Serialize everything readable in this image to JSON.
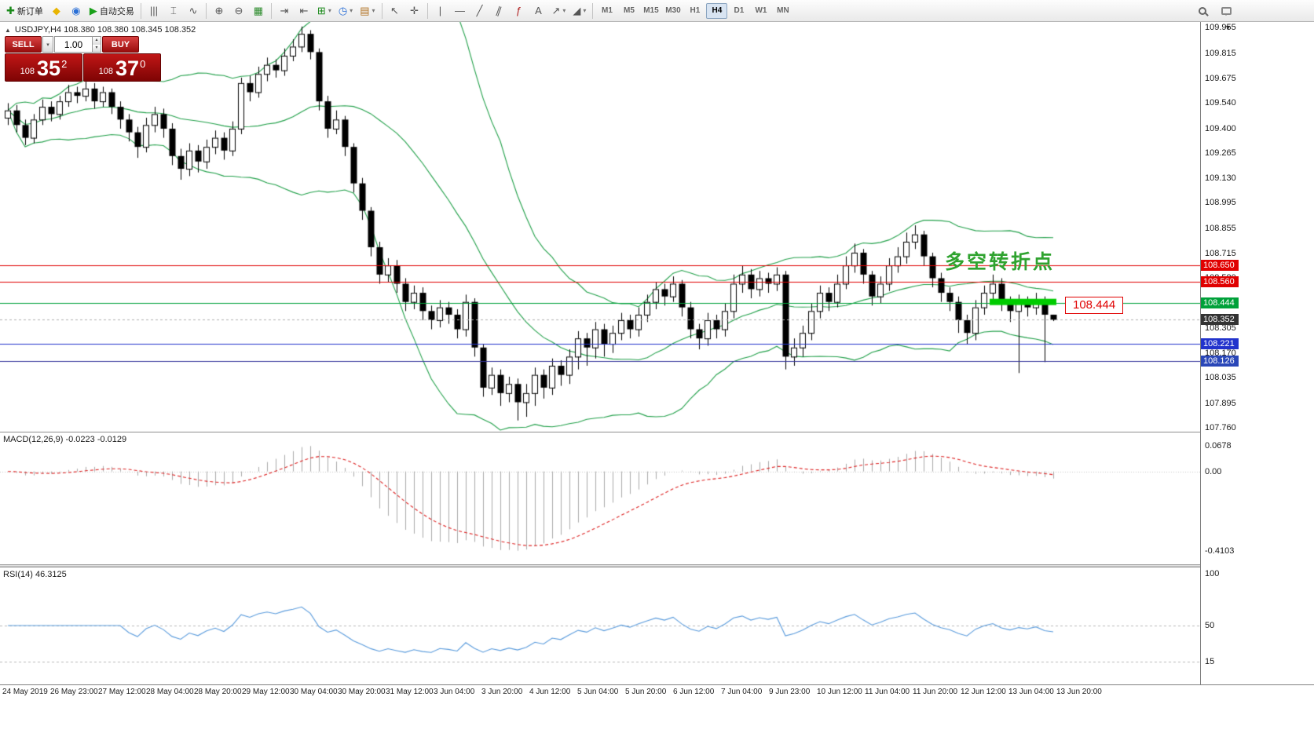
{
  "toolbar": {
    "dropdown_glyph": "▾",
    "groups": [
      {
        "items": [
          {
            "name": "new-order-button",
            "glyph": "✚",
            "glyph_color": "#1a8a1a",
            "label": "新订单"
          },
          {
            "name": "metaeditor-button",
            "glyph": "◆",
            "glyph_color": "#e8b400"
          },
          {
            "name": "mql5-community-button",
            "glyph": "◉",
            "glyph_color": "#2a6fd6"
          },
          {
            "name": "algo-trading-button",
            "glyph": "▶",
            "glyph_color": "#19a019",
            "label": "自动交易"
          }
        ]
      },
      {
        "items": [
          {
            "name": "chart-bars-button",
            "glyph": "|||"
          },
          {
            "name": "chart-candles-button",
            "glyph": "⌶"
          },
          {
            "name": "chart-line-button",
            "glyph": "∿"
          }
        ]
      },
      {
        "items": [
          {
            "name": "zoom-in-button",
            "glyph": "⊕"
          },
          {
            "name": "zoom-out-button",
            "glyph": "⊖"
          },
          {
            "name": "tile-windows-button",
            "glyph": "▦",
            "glyph_color": "#2a8a2a"
          }
        ]
      },
      {
        "items": [
          {
            "name": "auto-scroll-button",
            "glyph": "⇥"
          },
          {
            "name": "chart-shift-button",
            "glyph": "⇤"
          },
          {
            "name": "indicators-button",
            "glyph": "⊞",
            "glyph_color": "#1a8a1a",
            "dropdown": true
          },
          {
            "name": "periods-button",
            "glyph": "◷",
            "glyph_color": "#2a6fd6",
            "dropdown": true
          },
          {
            "name": "templates-button",
            "glyph": "▤",
            "glyph_color": "#b07020",
            "dropdown": true
          }
        ]
      },
      {
        "items": [
          {
            "name": "cursor-button",
            "glyph": "↖"
          },
          {
            "name": "crosshair-button",
            "glyph": "✛"
          }
        ]
      },
      {
        "items": [
          {
            "name": "vertical-line-button",
            "glyph": "|"
          },
          {
            "name": "horizontal-line-button",
            "glyph": "—"
          },
          {
            "name": "trendline-button",
            "glyph": "╱"
          },
          {
            "name": "channel-button",
            "glyph": "∥",
            "rot": true
          },
          {
            "name": "fibonacci-button",
            "glyph": "ƒ",
            "glyph_color": "#b02020"
          },
          {
            "name": "text-button",
            "glyph": "A"
          },
          {
            "name": "arrows-button",
            "glyph": "↗",
            "dropdown": true
          },
          {
            "name": "shapes-button",
            "glyph": "◢",
            "dropdown": true
          }
        ]
      }
    ],
    "timeframes": [
      "M1",
      "M5",
      "M15",
      "M30",
      "H1",
      "H4",
      "D1",
      "W1",
      "MN"
    ],
    "active_timeframe": "H4"
  },
  "chart": {
    "collapse_arrow": "▲",
    "symbol_info": "USDJPY,H4 108.380 108.380 108.345 108.352",
    "scale_arrow": "▼",
    "trade_panel": {
      "sell_label": "SELL",
      "buy_label": "BUY",
      "volume": "1.00",
      "dropdown_glyph": "▾",
      "spin_up": "▴",
      "spin_down": "▾",
      "sell_price": {
        "head": "108",
        "big": "35",
        "sup": "2"
      },
      "buy_price": {
        "head": "108",
        "big": "37",
        "sup": "0"
      }
    },
    "annotation_text": "多空转折点",
    "price_callout": "108.444",
    "hlines": [
      {
        "price": 108.65,
        "color": "#e00000",
        "dash": false
      },
      {
        "price": 108.56,
        "color": "#e00000",
        "dash": false
      },
      {
        "price": 108.444,
        "color": "#00a13a",
        "dash": false
      },
      {
        "price": 108.352,
        "color": "#b0b0b0",
        "dash": true
      },
      {
        "price": 108.221,
        "color": "#2233cc",
        "dash": false
      },
      {
        "price": 108.126,
        "color": "#333399",
        "dash": false
      }
    ],
    "green_segment": {
      "from_index": 114,
      "to_index": 121,
      "price": 108.45,
      "color": "#00cc00",
      "thickness": 8
    },
    "badges": [
      {
        "text": "108.650",
        "color": "#e00000",
        "price": 108.65
      },
      {
        "text": "108.560",
        "color": "#e00000",
        "price": 108.56
      },
      {
        "text": "108.444",
        "color": "#00a13a",
        "price": 108.444
      },
      {
        "text": "108.352",
        "color": "#333333",
        "price": 108.352
      },
      {
        "text": "108.221",
        "color": "#2233cc",
        "price": 108.221
      },
      {
        "text": "108.126",
        "color": "#2a47b8",
        "price": 108.126
      }
    ],
    "scale_labels": [
      "109.955",
      "109.815",
      "109.675",
      "109.540",
      "109.400",
      "109.265",
      "109.130",
      "108.995",
      "108.855",
      "108.715",
      "108.580",
      "108.440",
      "108.305",
      "108.170",
      "108.035",
      "107.895",
      "107.760"
    ]
  },
  "panels": {
    "macd": {
      "label": "MACD(12,26,9) -0.0223 -0.0129",
      "scale_top": "0.0678",
      "scale_zero": "0.00",
      "scale_bottom": "-0.4103"
    },
    "rsi": {
      "label": "RSI(14) 46.3125",
      "scale": [
        {
          "text": "100",
          "value": 100
        },
        {
          "text": "50",
          "value": 50
        },
        {
          "text": "15",
          "value": 15
        }
      ],
      "levels": [
        50,
        15
      ]
    }
  },
  "chart_data": {
    "type": "candlestick",
    "symbol": "USDJPY",
    "timeframe": "H4",
    "title": "USDJPY,H4",
    "price_axis": {
      "max": 109.955,
      "min": 107.76
    },
    "overlays": [
      "Bollinger Bands(20,2)"
    ],
    "macd_params": [
      12,
      26,
      9
    ],
    "rsi_period": 14,
    "last_ohlc": {
      "open": 108.38,
      "high": 108.38,
      "low": 108.345,
      "close": 108.352
    },
    "ohlc": [
      [
        109.46,
        109.54,
        109.42,
        109.5
      ],
      [
        109.5,
        109.53,
        109.38,
        109.42
      ],
      [
        109.42,
        109.45,
        109.31,
        109.35
      ],
      [
        109.35,
        109.48,
        109.32,
        109.45
      ],
      [
        109.45,
        109.56,
        109.42,
        109.52
      ],
      [
        109.52,
        109.55,
        109.44,
        109.48
      ],
      [
        109.48,
        109.58,
        109.45,
        109.55
      ],
      [
        109.55,
        109.64,
        109.52,
        109.6
      ],
      [
        109.6,
        109.63,
        109.54,
        109.58
      ],
      [
        109.58,
        109.66,
        109.55,
        109.62
      ],
      [
        109.62,
        109.65,
        109.51,
        109.55
      ],
      [
        109.55,
        109.63,
        109.52,
        109.6
      ],
      [
        109.6,
        109.62,
        109.48,
        109.52
      ],
      [
        109.52,
        109.55,
        109.4,
        109.45
      ],
      [
        109.45,
        109.48,
        109.33,
        109.38
      ],
      [
        109.38,
        109.41,
        109.24,
        109.3
      ],
      [
        109.3,
        109.46,
        109.27,
        109.42
      ],
      [
        109.42,
        109.52,
        109.38,
        109.48
      ],
      [
        109.48,
        109.51,
        109.35,
        109.4
      ],
      [
        109.4,
        109.43,
        109.2,
        109.25
      ],
      [
        109.25,
        109.29,
        109.12,
        109.18
      ],
      [
        109.18,
        109.32,
        109.14,
        109.28
      ],
      [
        109.28,
        109.31,
        109.16,
        109.22
      ],
      [
        109.22,
        109.34,
        109.18,
        109.3
      ],
      [
        109.3,
        109.39,
        109.26,
        109.35
      ],
      [
        109.35,
        109.38,
        109.23,
        109.28
      ],
      [
        109.28,
        109.44,
        109.25,
        109.4
      ],
      [
        109.4,
        109.68,
        109.37,
        109.65
      ],
      [
        109.65,
        109.69,
        109.55,
        109.6
      ],
      [
        109.6,
        109.74,
        109.57,
        109.7
      ],
      [
        109.7,
        109.79,
        109.66,
        109.75
      ],
      [
        109.75,
        109.78,
        109.68,
        109.72
      ],
      [
        109.72,
        109.84,
        109.69,
        109.8
      ],
      [
        109.8,
        109.89,
        109.77,
        109.85
      ],
      [
        109.85,
        109.96,
        109.82,
        109.92
      ],
      [
        109.92,
        109.94,
        109.78,
        109.82
      ],
      [
        109.82,
        109.84,
        109.5,
        109.55
      ],
      [
        109.55,
        109.58,
        109.35,
        109.4
      ],
      [
        109.4,
        109.5,
        109.37,
        109.45
      ],
      [
        109.45,
        109.47,
        109.25,
        109.3
      ],
      [
        109.3,
        109.32,
        109.05,
        109.1
      ],
      [
        109.1,
        109.13,
        108.9,
        108.95
      ],
      [
        108.95,
        108.97,
        108.7,
        108.75
      ],
      [
        108.75,
        108.78,
        108.55,
        108.6
      ],
      [
        108.6,
        108.69,
        108.56,
        108.65
      ],
      [
        108.65,
        108.68,
        108.5,
        108.55
      ],
      [
        108.55,
        108.58,
        108.4,
        108.45
      ],
      [
        108.45,
        108.54,
        108.41,
        108.5
      ],
      [
        108.5,
        108.53,
        108.35,
        108.4
      ],
      [
        108.4,
        108.43,
        108.3,
        108.35
      ],
      [
        108.35,
        108.46,
        108.31,
        108.42
      ],
      [
        108.42,
        108.45,
        108.33,
        108.38
      ],
      [
        108.38,
        108.41,
        108.25,
        108.3
      ],
      [
        108.3,
        108.49,
        108.26,
        108.45
      ],
      [
        108.45,
        108.47,
        108.15,
        108.2
      ],
      [
        108.2,
        108.22,
        107.93,
        107.98
      ],
      [
        107.98,
        108.09,
        107.94,
        108.05
      ],
      [
        108.05,
        108.08,
        107.88,
        107.95
      ],
      [
        107.95,
        108.04,
        107.9,
        108.0
      ],
      [
        108.0,
        108.03,
        107.8,
        107.9
      ],
      [
        107.9,
        108.0,
        107.82,
        107.95
      ],
      [
        107.95,
        108.09,
        107.88,
        108.05
      ],
      [
        108.05,
        108.08,
        107.92,
        107.98
      ],
      [
        107.98,
        108.14,
        107.94,
        108.1
      ],
      [
        108.1,
        108.13,
        107.99,
        108.05
      ],
      [
        108.05,
        108.19,
        108.0,
        108.15
      ],
      [
        108.15,
        108.29,
        108.08,
        108.25
      ],
      [
        108.25,
        108.28,
        108.1,
        108.2
      ],
      [
        108.2,
        108.34,
        108.14,
        108.3
      ],
      [
        108.3,
        108.33,
        108.15,
        108.22
      ],
      [
        108.22,
        108.32,
        108.17,
        108.28
      ],
      [
        108.28,
        108.39,
        108.24,
        108.35
      ],
      [
        108.35,
        108.38,
        108.25,
        108.3
      ],
      [
        108.3,
        108.42,
        108.26,
        108.38
      ],
      [
        108.38,
        108.49,
        108.34,
        108.45
      ],
      [
        108.45,
        108.56,
        108.41,
        108.52
      ],
      [
        108.52,
        108.55,
        108.43,
        108.48
      ],
      [
        108.48,
        108.59,
        108.45,
        108.55
      ],
      [
        108.55,
        108.57,
        108.37,
        108.42
      ],
      [
        108.42,
        108.45,
        108.25,
        108.3
      ],
      [
        108.3,
        108.33,
        108.19,
        108.25
      ],
      [
        108.25,
        108.39,
        108.21,
        108.35
      ],
      [
        108.35,
        108.38,
        108.25,
        108.3
      ],
      [
        108.3,
        108.44,
        108.26,
        108.4
      ],
      [
        108.4,
        108.6,
        108.36,
        108.55
      ],
      [
        108.55,
        108.65,
        108.5,
        108.6
      ],
      [
        108.6,
        108.63,
        108.47,
        108.52
      ],
      [
        108.52,
        108.62,
        108.48,
        108.58
      ],
      [
        108.58,
        108.61,
        108.5,
        108.55
      ],
      [
        108.55,
        108.64,
        108.51,
        108.6
      ],
      [
        108.6,
        108.62,
        108.08,
        108.15
      ],
      [
        108.15,
        108.25,
        108.1,
        108.2
      ],
      [
        108.2,
        108.32,
        108.15,
        108.28
      ],
      [
        108.28,
        108.44,
        108.24,
        108.4
      ],
      [
        108.4,
        108.54,
        108.36,
        108.5
      ],
      [
        108.5,
        108.53,
        108.4,
        108.45
      ],
      [
        108.45,
        108.6,
        108.42,
        108.55
      ],
      [
        108.55,
        108.7,
        108.52,
        108.65
      ],
      [
        108.65,
        108.77,
        108.61,
        108.72
      ],
      [
        108.72,
        108.74,
        108.55,
        108.6
      ],
      [
        108.6,
        108.62,
        108.43,
        108.48
      ],
      [
        108.48,
        108.59,
        108.44,
        108.55
      ],
      [
        108.55,
        108.69,
        108.51,
        108.65
      ],
      [
        108.65,
        108.75,
        108.61,
        108.7
      ],
      [
        108.7,
        108.83,
        108.66,
        108.78
      ],
      [
        108.78,
        108.87,
        108.74,
        108.82
      ],
      [
        108.82,
        108.84,
        108.65,
        108.7
      ],
      [
        108.7,
        108.72,
        108.53,
        108.58
      ],
      [
        108.58,
        108.61,
        108.45,
        108.5
      ],
      [
        108.5,
        108.53,
        108.4,
        108.45
      ],
      [
        108.45,
        108.48,
        108.28,
        108.35
      ],
      [
        108.35,
        108.38,
        108.22,
        108.28
      ],
      [
        108.28,
        108.46,
        108.24,
        108.42
      ],
      [
        108.42,
        108.54,
        108.38,
        108.5
      ],
      [
        108.5,
        108.6,
        108.46,
        108.55
      ],
      [
        108.55,
        108.58,
        108.4,
        108.45
      ],
      [
        108.45,
        108.48,
        108.34,
        108.4
      ],
      [
        108.4,
        108.49,
        108.06,
        108.45
      ],
      [
        108.45,
        108.48,
        108.37,
        108.42
      ],
      [
        108.42,
        108.5,
        108.38,
        108.46
      ],
      [
        108.46,
        108.48,
        108.12,
        108.38
      ],
      [
        108.38,
        108.38,
        108.345,
        108.352
      ]
    ],
    "time_labels": [
      "24 May 2019",
      "26 May 23:00",
      "27 May 12:00",
      "28 May 04:00",
      "28 May 20:00",
      "29 May 12:00",
      "30 May 04:00",
      "30 May 20:00",
      "31 May 12:00",
      "3 Jun 04:00",
      "3 Jun 20:00",
      "4 Jun 12:00",
      "5 Jun 04:00",
      "5 Jun 20:00",
      "6 Jun 12:00",
      "7 Jun 04:00",
      "9 Jun 23:00",
      "10 Jun 12:00",
      "11 Jun 04:00",
      "11 Jun 20:00",
      "12 Jun 12:00",
      "13 Jun 04:00",
      "13 Jun 20:00"
    ]
  }
}
